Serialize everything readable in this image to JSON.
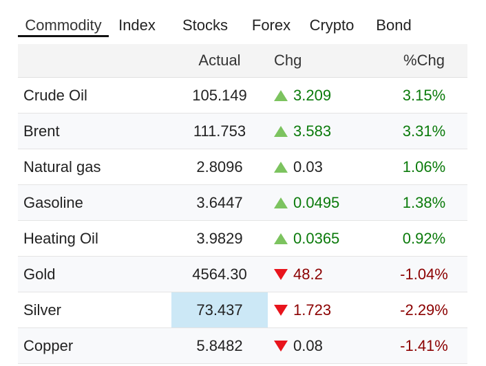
{
  "tabs": [
    "Commodity",
    "Index",
    "Stocks",
    "Forex",
    "Crypto",
    "Bond"
  ],
  "active_tab": 0,
  "table": {
    "headers": [
      "",
      "Actual",
      "Chg",
      "%Chg"
    ],
    "rows": [
      {
        "name": "Crude Oil",
        "actual": "105.149",
        "chg": "3.209",
        "pct": "3.15%",
        "direction": "up",
        "chg_color": "#0a7a0a",
        "pct_color": "#0a7a0a"
      },
      {
        "name": "Brent",
        "actual": "111.753",
        "chg": "3.583",
        "pct": "3.31%",
        "direction": "up",
        "chg_color": "#0a7a0a",
        "pct_color": "#0a7a0a"
      },
      {
        "name": "Natural gas",
        "actual": "2.8096",
        "chg": "0.03",
        "pct": "1.06%",
        "direction": "up",
        "chg_color": "#222222",
        "pct_color": "#0a7a0a"
      },
      {
        "name": "Gasoline",
        "actual": "3.6447",
        "chg": "0.0495",
        "pct": "1.38%",
        "direction": "up",
        "chg_color": "#0a7a0a",
        "pct_color": "#0a7a0a"
      },
      {
        "name": "Heating Oil",
        "actual": "3.9829",
        "chg": "0.0365",
        "pct": "0.92%",
        "direction": "up",
        "chg_color": "#0a7a0a",
        "pct_color": "#0a7a0a"
      },
      {
        "name": "Gold",
        "actual": "4564.30",
        "chg": "48.2",
        "pct": "-1.04%",
        "direction": "down",
        "chg_color": "#8b0000",
        "pct_color": "#8b0000"
      },
      {
        "name": "Silver",
        "actual": "73.437",
        "chg": "1.723",
        "pct": "-2.29%",
        "direction": "down",
        "chg_color": "#8b0000",
        "pct_color": "#8b0000",
        "highlight": true
      },
      {
        "name": "Copper",
        "actual": "5.8482",
        "chg": "0.08",
        "pct": "-1.41%",
        "direction": "down",
        "chg_color": "#222222",
        "pct_color": "#8b0000"
      }
    ]
  }
}
